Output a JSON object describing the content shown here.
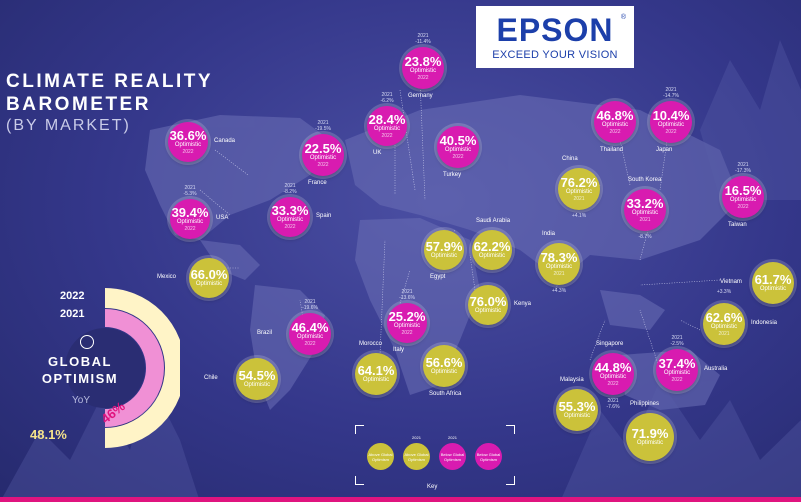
{
  "header": {
    "title_line1": "CLIMATE REALITY",
    "title_line2": "BAROMETER",
    "subtitle": "(BY MARKET)"
  },
  "logo": {
    "brand": "EPSON",
    "registered": "®",
    "tagline": "EXCEED YOUR VISION"
  },
  "colors": {
    "above_global": "#cbc23a",
    "below_global": "#d81bb0",
    "background": "#34378a",
    "accent": "#e0147f"
  },
  "optimistic_label": "Optimistic",
  "markets": [
    {
      "country": "Canada",
      "value": "36.6%",
      "class": "pink",
      "year": "2022",
      "prev": ""
    },
    {
      "country": "USA",
      "value": "39.4%",
      "class": "pink",
      "year": "2022",
      "prev": "2021",
      "change": "-5.3%"
    },
    {
      "country": "Mexico",
      "value": "66.0%",
      "class": "gold",
      "year": "",
      "prev": ""
    },
    {
      "country": "Brazil",
      "value": "46.4%",
      "class": "pink",
      "year": "2022",
      "prev": "2021",
      "change": "-19.6%"
    },
    {
      "country": "Chile",
      "value": "54.5%",
      "class": "gold",
      "year": "",
      "prev": ""
    },
    {
      "country": "France",
      "value": "22.5%",
      "class": "pink",
      "year": "2022",
      "prev": "2021",
      "change": "-19.5%"
    },
    {
      "country": "Spain",
      "value": "33.3%",
      "class": "pink",
      "year": "2022",
      "prev": "2021",
      "change": "-8.2%"
    },
    {
      "country": "UK",
      "value": "28.4%",
      "class": "pink",
      "year": "2022",
      "prev": "2021",
      "change": "-6.2%"
    },
    {
      "country": "Germany",
      "value": "23.8%",
      "class": "pink",
      "year": "2022",
      "prev": "2021",
      "change": "-11.4%"
    },
    {
      "country": "Turkey",
      "value": "40.5%",
      "class": "pink",
      "year": "2022",
      "prev": ""
    },
    {
      "country": "Italy",
      "value": "25.2%",
      "class": "pink",
      "year": "2022",
      "prev": "2021",
      "change": "-13.6%"
    },
    {
      "country": "Morocco",
      "value": "64.1%",
      "class": "gold",
      "year": "",
      "prev": ""
    },
    {
      "country": "Egypt",
      "value": "57.9%",
      "class": "gold",
      "year": "",
      "prev": ""
    },
    {
      "country": "Saudi Arabia",
      "value": "62.2%",
      "class": "gold",
      "year": "",
      "prev": ""
    },
    {
      "country": "Kenya",
      "value": "76.0%",
      "class": "gold",
      "year": "",
      "prev": ""
    },
    {
      "country": "South Africa",
      "value": "56.6%",
      "class": "gold",
      "year": "",
      "prev": ""
    },
    {
      "country": "India",
      "value": "78.3%",
      "class": "gold",
      "year": "2021",
      "prev": "",
      "change": "+4.3%"
    },
    {
      "country": "China",
      "value": "76.2%",
      "class": "gold",
      "year": "2021",
      "prev": "",
      "change": "+4.1%"
    },
    {
      "country": "Thailand",
      "value": "46.8%",
      "class": "pink",
      "year": "2022",
      "prev": ""
    },
    {
      "country": "Japan",
      "value": "10.4%",
      "class": "pink",
      "year": "2022",
      "prev": "2021",
      "change": "-14.7%"
    },
    {
      "country": "South Korea",
      "value": "33.2%",
      "class": "pink",
      "year": "2021",
      "prev": "",
      "change": "-8.7%"
    },
    {
      "country": "Taiwan",
      "value": "16.5%",
      "class": "pink",
      "year": "2022",
      "prev": "2021",
      "change": "-17.3%"
    },
    {
      "country": "Vietnam",
      "value": "61.7%",
      "class": "gold",
      "year": "",
      "prev": ""
    },
    {
      "country": "Indonesia",
      "value": "62.6%",
      "class": "gold",
      "year": "2021",
      "prev": "",
      "change": "+3.3%"
    },
    {
      "country": "Singapore",
      "value": "44.8%",
      "class": "pink",
      "year": "2022",
      "prev": "2021",
      "change": "-7.6%"
    },
    {
      "country": "Australia",
      "value": "37.4%",
      "class": "pink",
      "year": "2022",
      "prev": "2021",
      "change": "-2.5%"
    },
    {
      "country": "Malaysia",
      "value": "55.3%",
      "class": "gold",
      "year": "",
      "prev": ""
    },
    {
      "country": "Philippines",
      "value": "71.9%",
      "class": "gold",
      "year": "",
      "prev": ""
    }
  ],
  "global_optimism": {
    "year_2022": "2022",
    "year_2021": "2021",
    "title_line1": "GLOBAL",
    "title_line2": "OPTIMISM",
    "yoy_label": "YoY",
    "value_2021": "48.1%",
    "value_2022": "46%",
    "share_2021": 0.481,
    "share_2022": 0.46
  },
  "key": {
    "title": "Key",
    "items": [
      {
        "label": "Above Global Optimism",
        "class": "gold"
      },
      {
        "label": "Above Global Optimism",
        "class": "gold",
        "year": "2021"
      },
      {
        "label": "Below Global Optimism",
        "class": "pink",
        "year": "2021"
      },
      {
        "label": "Below Global Optimism",
        "class": "pink"
      }
    ]
  }
}
